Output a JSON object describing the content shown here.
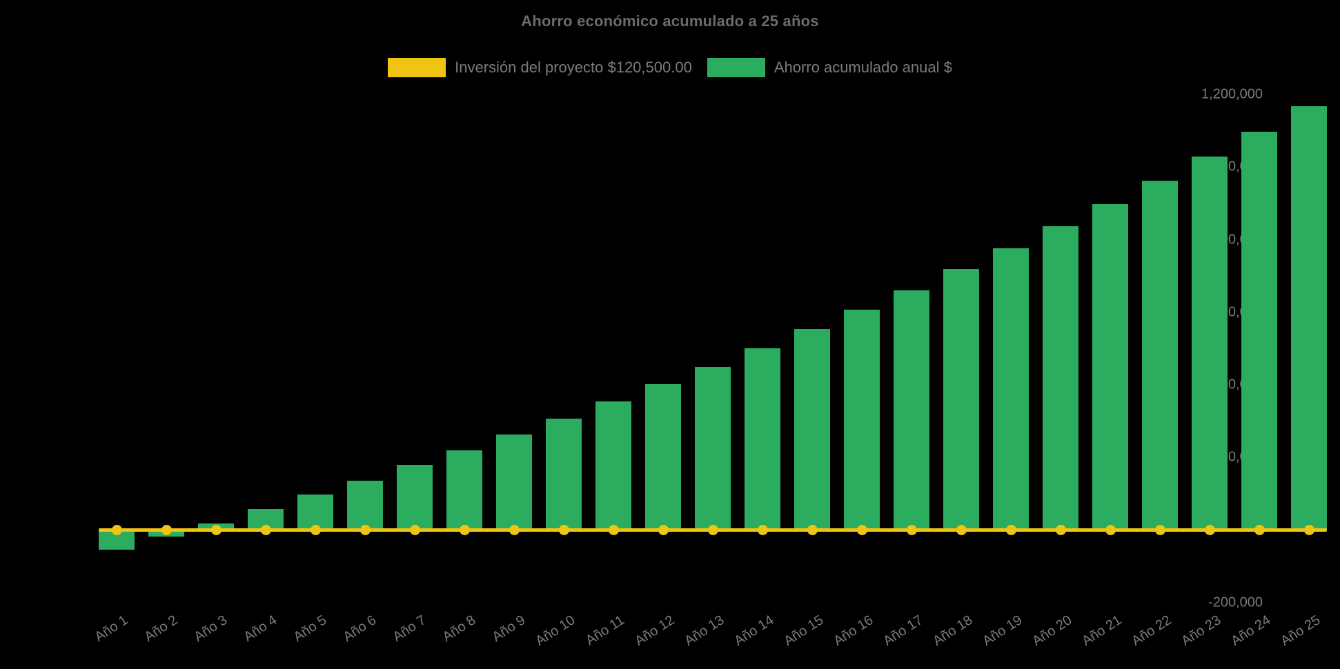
{
  "chart_data": {
    "type": "bar",
    "title": "Ahorro económico acumulado a 25 años",
    "categories": [
      "Año 1",
      "Año 2",
      "Año 3",
      "Año 4",
      "Año 5",
      "Año 6",
      "Año 7",
      "Año 8",
      "Año 9",
      "Año 10",
      "Año 11",
      "Año 12",
      "Año 13",
      "Año 14",
      "Año 15",
      "Año 16",
      "Año 17",
      "Año 18",
      "Año 19",
      "Año 20",
      "Año 21",
      "Año 22",
      "Año 23",
      "Año 24",
      "Año 25"
    ],
    "series": [
      {
        "name": "Inversión del proyecto $120,500.00",
        "type": "line",
        "color": "#F0C413",
        "values": [
          0,
          0,
          0,
          0,
          0,
          0,
          0,
          0,
          0,
          0,
          0,
          0,
          0,
          0,
          0,
          0,
          0,
          0,
          0,
          0,
          0,
          0,
          0,
          0,
          0
        ]
      },
      {
        "name": "Ahorro acumulado anual $",
        "type": "bar",
        "color": "#2BAC5F",
        "values": [
          -53000,
          -18000,
          19000,
          58000,
          98000,
          137000,
          179000,
          220000,
          264000,
          308000,
          355000,
          403000,
          450000,
          501000,
          555000,
          608000,
          661000,
          720000,
          777000,
          838000,
          898000,
          963000,
          1029000,
          1098000,
          1168000
        ]
      }
    ],
    "xlabel": "",
    "ylabel": "",
    "ylim": [
      -200000,
      1200000
    ],
    "ytick_step": 200000,
    "ytick_labels": [
      "-200,000",
      "0",
      "200,000",
      "400,000",
      "600,000",
      "800,000",
      "1,000,000",
      "1,200,000"
    ],
    "grid": false,
    "legend_position": "top-center",
    "background": "#000000",
    "text_color": "#7b7b7b",
    "title_color": "#6b6b6b"
  }
}
